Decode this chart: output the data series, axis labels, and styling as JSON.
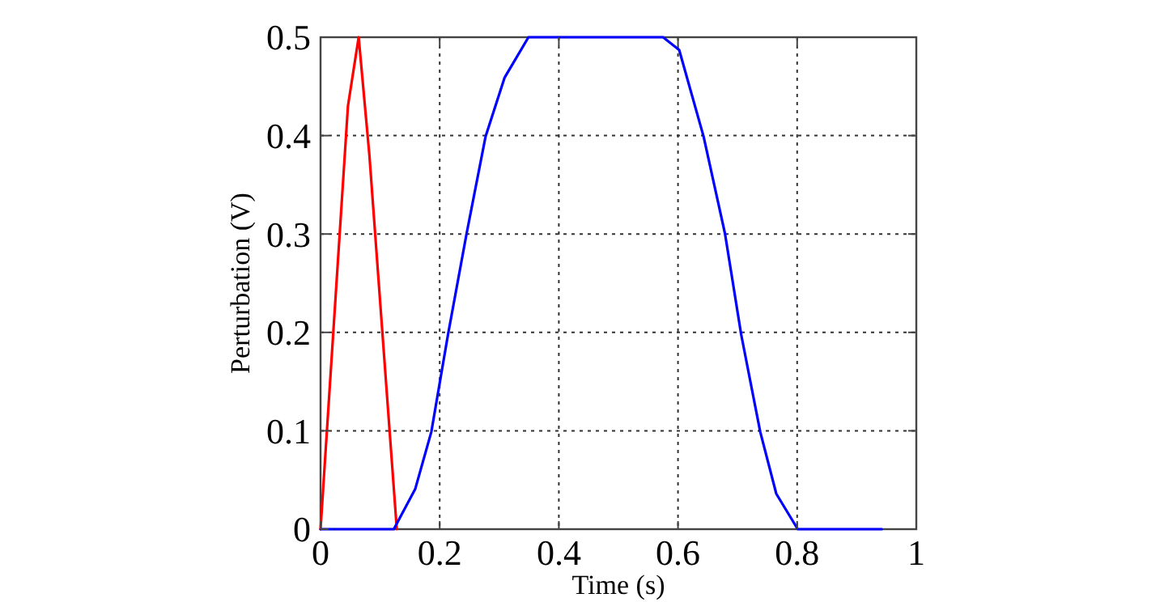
{
  "chart_data": {
    "type": "line",
    "xlabel": "Time (s)",
    "ylabel": "Perturbation (V)",
    "xlim": [
      0,
      1
    ],
    "ylim": [
      0,
      0.5
    ],
    "xticks": [
      0,
      0.2,
      0.4,
      0.6,
      0.8,
      1
    ],
    "yticks": [
      0,
      0.1,
      0.2,
      0.3,
      0.4,
      0.5
    ],
    "grid": true,
    "line_style": "solid",
    "marker": "none",
    "series": [
      {
        "color": "#ff0000",
        "x": [
          0,
          0.046,
          0.064,
          0.082,
          0.128
        ],
        "values": [
          0,
          0.43,
          0.5,
          0.38,
          0
        ]
      },
      {
        "color": "#0000ff",
        "x": [
          0,
          0.114,
          0.123,
          0.159,
          0.186,
          0.214,
          0.245,
          0.277,
          0.309,
          0.349,
          0.575,
          0.602,
          0.643,
          0.679,
          0.706,
          0.738,
          0.765,
          0.801,
          0.942
        ],
        "values": [
          0,
          0,
          0,
          0.041,
          0.099,
          0.198,
          0.3,
          0.399,
          0.459,
          0.5,
          0.5,
          0.487,
          0.399,
          0.3,
          0.198,
          0.099,
          0.036,
          0,
          0
        ]
      }
    ]
  }
}
